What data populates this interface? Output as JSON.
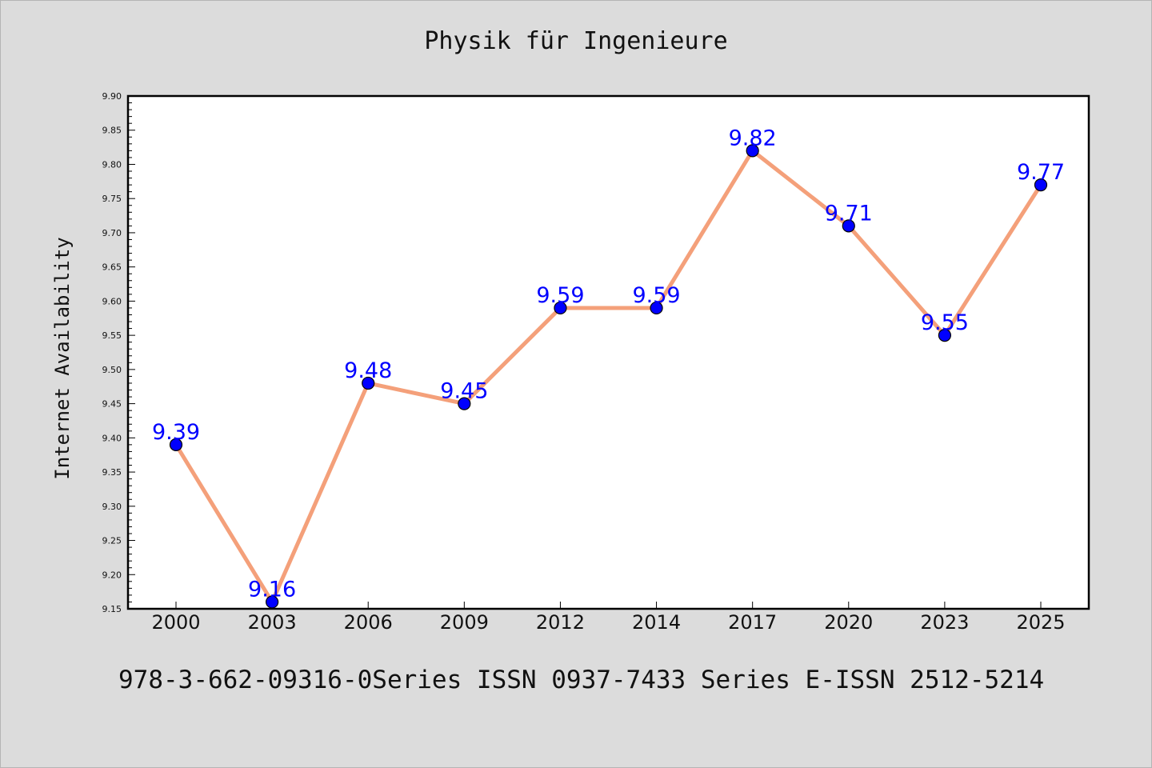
{
  "title": "Physik für Ingenieure",
  "footer": "978-3-662-09316-0Series ISSN 0937-7433 Series E-ISSN 2512-5214",
  "chart_data": {
    "type": "line",
    "title": "Physik für Ingenieure",
    "xlabel": "",
    "ylabel": "Internet Availability",
    "categories": [
      "2000",
      "2003",
      "2006",
      "2009",
      "2012",
      "2014",
      "2017",
      "2020",
      "2023",
      "2025"
    ],
    "series": [
      {
        "values": [
          9.39,
          9.16,
          9.48,
          9.45,
          9.59,
          9.59,
          9.82,
          9.71,
          9.55,
          9.77
        ],
        "line_color": "#f4a07a",
        "marker_color": "#0000ff",
        "label_color": "#0000ff"
      }
    ],
    "ylim": [
      9.15,
      9.9
    ],
    "yticks": [
      "9.15",
      "9.20",
      "9.25",
      "9.30",
      "9.35",
      "9.40",
      "9.45",
      "9.50",
      "9.55",
      "9.60",
      "9.65",
      "9.70",
      "9.75",
      "9.80",
      "9.85",
      "9.90"
    ],
    "grid": false,
    "legend": "none",
    "data_labels": [
      "9.39",
      "9.16",
      "9.48",
      "9.45",
      "9.59",
      "9.59",
      "9.82",
      "9.71",
      "9.55",
      "9.77"
    ]
  }
}
